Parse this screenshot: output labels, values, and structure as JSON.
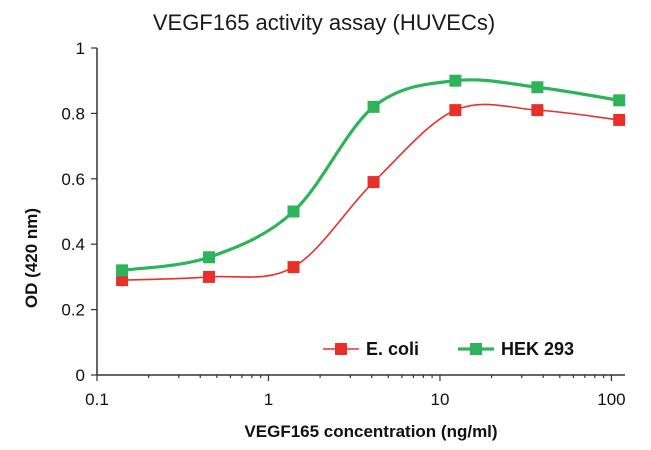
{
  "chart_data": {
    "type": "line",
    "title": "VEGF165 activity assay (HUVECs)",
    "xlabel": "VEGF165 concentration (ng/ml)",
    "ylabel": "OD (420 nm)",
    "x_scale": "log",
    "xlim": [
      0.1,
      120
    ],
    "ylim": [
      0,
      1
    ],
    "x_ticks": [
      0.1,
      1,
      10,
      100
    ],
    "x_tick_labels": [
      "0.1",
      "1",
      "10",
      "100"
    ],
    "y_ticks": [
      0,
      0.2,
      0.4,
      0.6,
      0.8,
      1
    ],
    "y_tick_labels": [
      "0",
      "0.2",
      "0.4",
      "0.6",
      "0.8",
      "1"
    ],
    "grid": false,
    "legend_position": "bottom-right",
    "x": [
      0.14,
      0.45,
      1.4,
      4.1,
      12.3,
      37,
      111
    ],
    "series": [
      {
        "name": "E. coli",
        "color": "#e8302a",
        "values": [
          0.29,
          0.3,
          0.33,
          0.59,
          0.81,
          0.81,
          0.78
        ]
      },
      {
        "name": "HEK 293",
        "color": "#2fb35a",
        "values": [
          0.32,
          0.36,
          0.5,
          0.82,
          0.9,
          0.88,
          0.84
        ]
      }
    ]
  }
}
